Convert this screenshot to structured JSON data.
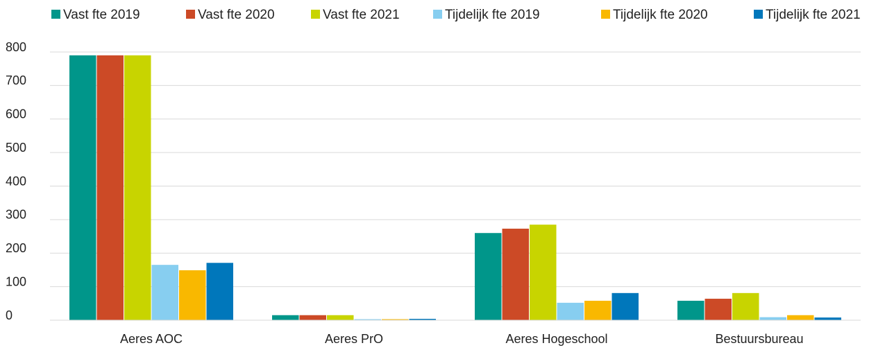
{
  "chart_data": {
    "type": "bar",
    "categories": [
      "Aeres AOC",
      "Aeres PrO",
      "Aeres Hogeschool",
      "Bestuursbureau"
    ],
    "series": [
      {
        "name": "Vast fte 2019",
        "color": "#00968a",
        "values": [
          790,
          15,
          260,
          58
        ]
      },
      {
        "name": "Vast fte 2020",
        "color": "#cc4a26",
        "values": [
          790,
          15,
          273,
          64
        ]
      },
      {
        "name": "Vast fte 2021",
        "color": "#c8d400",
        "values": [
          790,
          15,
          285,
          81
        ]
      },
      {
        "name": "Tijdelijk fte 2019",
        "color": "#87cef0",
        "values": [
          165,
          3,
          52,
          9
        ]
      },
      {
        "name": "Tijdelijk fte 2020",
        "color": "#f9b800",
        "values": [
          149,
          3,
          58,
          15
        ]
      },
      {
        "name": "Tijdelijk fte 2021",
        "color": "#0077bb",
        "values": [
          171,
          4,
          81,
          8
        ]
      }
    ],
    "ylim": [
      0,
      800
    ],
    "yticks": [
      0,
      100,
      200,
      300,
      400,
      500,
      600,
      700,
      800
    ],
    "grid": true,
    "legend": "top"
  }
}
